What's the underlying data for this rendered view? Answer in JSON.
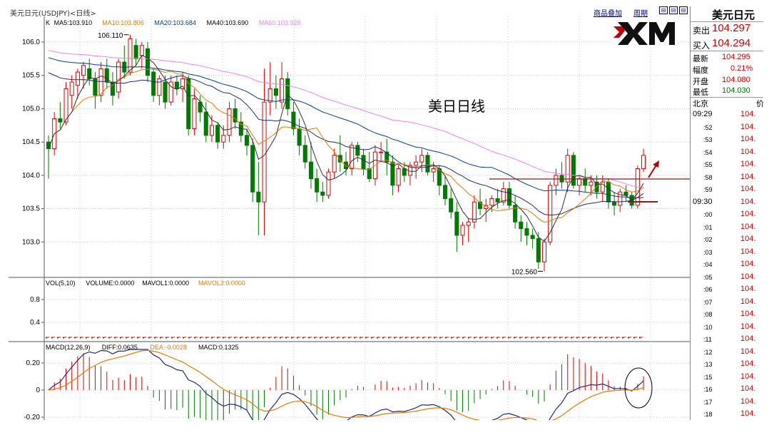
{
  "toolbar": {
    "title": "美元日元(USDJPY)<日线>",
    "links": [
      "商品叠加",
      "周期"
    ],
    "buttons": [
      "⊟",
      "⊟",
      "⊟"
    ]
  },
  "logo": {
    "text": "XM"
  },
  "main": {
    "ma_legend": [
      {
        "label": "K",
        "color": "#000000"
      },
      {
        "label": "MA5:103.910",
        "color": "#000000"
      },
      {
        "label": "MA10:103.806",
        "color": "#e87a00"
      },
      {
        "label": "MA20:103.684",
        "color": "#003e8a"
      },
      {
        "label": "MA40:103.690",
        "color": "#000000"
      },
      {
        "label": "MA60:103.928",
        "color": "#f080f0"
      }
    ],
    "annotation": "美日日线",
    "high_label": "106.110",
    "low_label": "102.560",
    "yticks": [
      "106.0",
      "105.5",
      "105.0",
      "104.5",
      "104.0",
      "103.5",
      "103.0"
    ]
  },
  "volume": {
    "legend": [
      {
        "label": "VOL(5,10)",
        "color": "#000000"
      },
      {
        "label": "VOLUME:0.0000",
        "color": "#000000"
      },
      {
        "label": "MAVOL1:0.0000",
        "color": "#000000"
      },
      {
        "label": "MAVOL2:0.0000",
        "color": "#e87a00"
      }
    ],
    "yticks": [
      "0.8",
      "0.4"
    ]
  },
  "macd": {
    "legend": [
      {
        "label": "MACD(12,26,9)",
        "color": "#000000"
      },
      {
        "label": "DIFF:0.0635",
        "color": "#000000"
      },
      {
        "label": "DEA:-0.0028",
        "color": "#e87a00"
      },
      {
        "label": "MACD:0.1325",
        "color": "#000000"
      }
    ],
    "yticks": [
      "0.20",
      "0",
      "-0.20"
    ]
  },
  "panel": {
    "title": "美元日元",
    "quotes": [
      {
        "label": "卖出",
        "value": "104.297"
      },
      {
        "label": "买入",
        "value": "104.294"
      }
    ],
    "stats": [
      {
        "label": "最新",
        "value": "104.295",
        "color": "red"
      },
      {
        "label": "幅度",
        "value": "0.21%",
        "color": "red"
      },
      {
        "label": "开盘",
        "value": "104.080",
        "color": "red"
      },
      {
        "label": "最低",
        "value": "104.030",
        "color": "green"
      }
    ],
    "city": "北京",
    "city2": "价",
    "ticks": [
      {
        "t": "09:29",
        "v": "104."
      },
      {
        "t": ":52",
        "v": "104."
      },
      {
        "t": ":53",
        "v": "104."
      },
      {
        "t": ":54",
        "v": "104."
      },
      {
        "t": ":55",
        "v": "104."
      },
      {
        "t": ":58",
        "v": "104."
      },
      {
        "t": ":59",
        "v": "104."
      },
      {
        "t": "09:30",
        "v": "104."
      },
      {
        "t": ":00",
        "v": "104."
      },
      {
        "t": ":01",
        "v": "104."
      },
      {
        "t": ":02",
        "v": "104."
      },
      {
        "t": ":03",
        "v": "104."
      },
      {
        "t": ":04",
        "v": "104."
      },
      {
        "t": ":05",
        "v": "104."
      },
      {
        "t": ":06",
        "v": "104."
      },
      {
        "t": ":07",
        "v": "104."
      },
      {
        "t": ":08",
        "v": "104."
      },
      {
        "t": ":10",
        "v": "104."
      },
      {
        "t": ":11",
        "v": "104."
      },
      {
        "t": ":12",
        "v": "104."
      },
      {
        "t": ":13",
        "v": "104."
      },
      {
        "t": ":15",
        "v": "104."
      },
      {
        "t": ":16",
        "v": "104."
      },
      {
        "t": ":17",
        "v": "104."
      },
      {
        "t": ":18",
        "v": "104."
      }
    ]
  },
  "colors": {
    "up": "#e00000",
    "down": "#007a00",
    "ma5": "#000000",
    "ma10": "#e87a00",
    "ma20": "#003e8a",
    "ma40": "#000000",
    "ma60": "#f080f0",
    "grid": "#c8c8c8"
  },
  "chart_data": {
    "type": "candlestick",
    "price_range": [
      102.5,
      106.3
    ],
    "ohlc": [
      [
        104.5,
        104.6,
        103.95,
        104.4
      ],
      [
        104.4,
        104.95,
        104.3,
        104.85
      ],
      [
        104.85,
        105.1,
        104.7,
        104.8
      ],
      [
        104.8,
        105.4,
        104.75,
        105.3
      ],
      [
        105.2,
        105.5,
        105.0,
        105.4
      ],
      [
        105.35,
        105.6,
        105.15,
        105.55
      ],
      [
        105.5,
        105.7,
        105.3,
        105.65
      ],
      [
        105.6,
        105.75,
        105.35,
        105.45
      ],
      [
        105.45,
        105.55,
        105.0,
        105.2
      ],
      [
        105.2,
        105.7,
        105.1,
        105.6
      ],
      [
        105.6,
        105.75,
        105.3,
        105.4
      ],
      [
        105.4,
        105.55,
        105.05,
        105.2
      ],
      [
        105.25,
        105.75,
        105.15,
        105.7
      ],
      [
        105.7,
        105.95,
        105.45,
        105.55
      ],
      [
        105.55,
        106.11,
        105.5,
        106.05
      ],
      [
        105.95,
        106.05,
        105.65,
        105.75
      ],
      [
        105.8,
        106.0,
        105.6,
        105.95
      ],
      [
        105.9,
        106.0,
        105.4,
        105.5
      ],
      [
        105.55,
        105.6,
        105.1,
        105.2
      ],
      [
        105.2,
        105.5,
        105.05,
        105.45
      ],
      [
        105.4,
        105.5,
        105.0,
        105.1
      ],
      [
        105.1,
        105.5,
        105.05,
        105.4
      ],
      [
        105.4,
        105.5,
        105.2,
        105.3
      ],
      [
        105.3,
        105.55,
        105.1,
        105.45
      ],
      [
        105.45,
        105.5,
        104.6,
        104.7
      ],
      [
        104.7,
        105.3,
        104.6,
        105.15
      ],
      [
        105.1,
        105.2,
        104.8,
        104.95
      ],
      [
        104.95,
        105.1,
        104.5,
        104.6
      ],
      [
        104.6,
        104.9,
        104.5,
        104.75
      ],
      [
        104.75,
        104.8,
        104.4,
        104.5
      ],
      [
        104.5,
        104.75,
        104.4,
        104.6
      ],
      [
        104.6,
        105.1,
        104.5,
        105.0
      ],
      [
        105.0,
        105.15,
        104.7,
        104.8
      ],
      [
        104.8,
        104.95,
        104.5,
        104.6
      ],
      [
        104.6,
        104.7,
        104.3,
        104.45
      ],
      [
        104.45,
        104.55,
        103.6,
        103.75
      ],
      [
        103.75,
        104.2,
        103.1,
        103.6
      ],
      [
        103.6,
        105.6,
        103.1,
        105.1
      ],
      [
        105.1,
        105.7,
        104.9,
        105.3
      ],
      [
        105.3,
        105.5,
        105.0,
        105.2
      ],
      [
        105.1,
        105.7,
        105.0,
        105.45
      ],
      [
        105.45,
        105.55,
        104.9,
        105.0
      ],
      [
        104.95,
        105.1,
        104.6,
        104.7
      ],
      [
        104.7,
        104.85,
        104.3,
        104.45
      ],
      [
        104.45,
        104.6,
        104.1,
        104.2
      ],
      [
        104.2,
        104.5,
        103.8,
        103.95
      ],
      [
        103.95,
        104.1,
        103.6,
        103.75
      ],
      [
        103.75,
        103.9,
        103.6,
        103.7
      ],
      [
        103.7,
        104.1,
        103.65,
        104.05
      ],
      [
        104.05,
        104.4,
        103.95,
        104.3
      ],
      [
        104.3,
        104.6,
        104.05,
        104.2
      ],
      [
        104.2,
        104.35,
        104.0,
        104.1
      ],
      [
        104.1,
        104.5,
        104.0,
        104.45
      ],
      [
        104.45,
        104.5,
        104.2,
        104.3
      ],
      [
        104.3,
        104.4,
        104.0,
        104.1
      ],
      [
        104.1,
        104.35,
        103.9,
        103.95
      ],
      [
        103.95,
        104.45,
        103.85,
        104.35
      ],
      [
        104.35,
        104.5,
        104.2,
        104.35
      ],
      [
        104.35,
        104.55,
        104.0,
        104.2
      ],
      [
        104.2,
        104.3,
        103.7,
        103.85
      ],
      [
        103.85,
        104.15,
        103.75,
        104.1
      ],
      [
        104.1,
        104.2,
        103.9,
        104.0
      ],
      [
        104.0,
        104.2,
        103.85,
        104.15
      ],
      [
        104.15,
        104.3,
        103.95,
        104.2
      ],
      [
        104.2,
        104.4,
        104.05,
        104.3
      ],
      [
        104.3,
        104.35,
        104.0,
        104.05
      ],
      [
        104.05,
        104.2,
        103.9,
        104.1
      ],
      [
        104.1,
        104.15,
        103.7,
        103.85
      ],
      [
        103.85,
        104.0,
        103.55,
        103.65
      ],
      [
        103.65,
        103.8,
        103.35,
        103.45
      ],
      [
        103.45,
        103.6,
        102.85,
        103.1
      ],
      [
        103.1,
        103.3,
        102.95,
        103.25
      ],
      [
        103.25,
        103.35,
        103.0,
        103.3
      ],
      [
        103.3,
        103.7,
        103.2,
        103.6
      ],
      [
        103.6,
        103.8,
        103.4,
        103.5
      ],
      [
        103.5,
        103.65,
        103.3,
        103.55
      ],
      [
        103.55,
        103.7,
        103.45,
        103.65
      ],
      [
        103.65,
        103.8,
        103.5,
        103.6
      ],
      [
        103.6,
        103.9,
        103.55,
        103.8
      ],
      [
        103.8,
        103.9,
        103.5,
        103.55
      ],
      [
        103.55,
        103.7,
        103.2,
        103.3
      ],
      [
        103.3,
        103.4,
        103.0,
        103.2
      ],
      [
        103.2,
        103.3,
        102.95,
        103.1
      ],
      [
        103.1,
        103.2,
        102.9,
        103.05
      ],
      [
        103.05,
        103.15,
        102.6,
        102.7
      ],
      [
        102.7,
        103.05,
        102.56,
        103.0
      ],
      [
        103.0,
        103.9,
        102.95,
        103.85
      ],
      [
        103.85,
        104.1,
        103.7,
        104.0
      ],
      [
        104.0,
        104.2,
        103.8,
        103.9
      ],
      [
        103.9,
        104.4,
        103.75,
        104.3
      ],
      [
        104.3,
        104.35,
        103.8,
        103.85
      ],
      [
        103.85,
        104.0,
        103.7,
        103.95
      ],
      [
        103.95,
        104.1,
        103.75,
        103.85
      ],
      [
        103.85,
        104.0,
        103.7,
        103.9
      ],
      [
        103.9,
        104.0,
        103.65,
        103.75
      ],
      [
        103.75,
        104.0,
        103.6,
        103.9
      ],
      [
        103.9,
        103.95,
        103.5,
        103.6
      ],
      [
        103.6,
        103.75,
        103.4,
        103.55
      ],
      [
        103.55,
        103.8,
        103.45,
        103.75
      ],
      [
        103.75,
        103.85,
        103.6,
        103.7
      ],
      [
        103.7,
        103.75,
        103.5,
        103.55
      ],
      [
        103.55,
        104.15,
        103.5,
        104.1
      ],
      [
        104.1,
        104.4,
        104.05,
        104.3
      ]
    ]
  }
}
